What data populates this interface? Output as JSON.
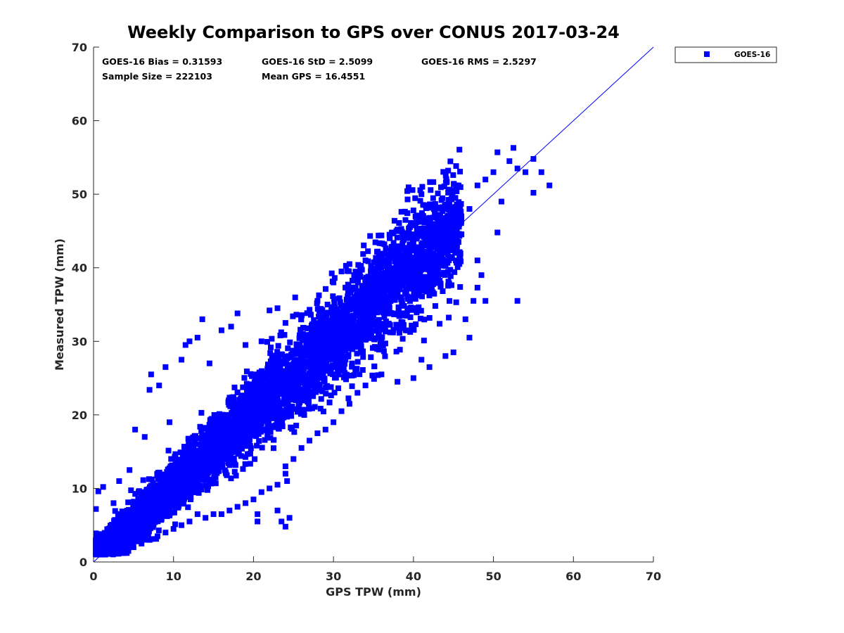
{
  "chart_data": {
    "type": "scatter",
    "title": "Weekly Comparison to GPS over CONUS 2017-03-24",
    "xlabel": "GPS TPW (mm)",
    "ylabel": "Measured TPW (mm)",
    "xlim": [
      0,
      70
    ],
    "ylim": [
      0,
      70
    ],
    "xticks": [
      0,
      10,
      20,
      30,
      40,
      50,
      60,
      70
    ],
    "yticks": [
      0,
      10,
      20,
      30,
      40,
      50,
      60,
      70
    ],
    "grid": false,
    "legend": {
      "position": "outside-top-right",
      "entries": [
        "GOES-16"
      ]
    },
    "series": [
      {
        "name": "GOES-16",
        "color": "#0000ff",
        "marker": "square",
        "description": "dense cloud of points clustered along the 1:1 line from about 0 to 55 mm",
        "points": [
          [
            0.5,
            2.0
          ],
          [
            1.0,
            1.5
          ],
          [
            1.5,
            3.0
          ],
          [
            2.0,
            2.5
          ],
          [
            3.0,
            3.5
          ],
          [
            4.0,
            4.2
          ],
          [
            5.0,
            5.5
          ],
          [
            6.0,
            6.8
          ],
          [
            7.0,
            7.5
          ],
          [
            8.0,
            8.6
          ],
          [
            9.0,
            9.4
          ],
          [
            10.0,
            10.5
          ],
          [
            11.0,
            11.6
          ],
          [
            12.0,
            12.8
          ],
          [
            13.0,
            13.2
          ],
          [
            14.0,
            14.9
          ],
          [
            15.0,
            15.5
          ],
          [
            16.0,
            16.7
          ],
          [
            17.0,
            17.2
          ],
          [
            18.0,
            18.9
          ],
          [
            19.0,
            19.6
          ],
          [
            20.0,
            20.5
          ],
          [
            21.0,
            21.8
          ],
          [
            22.0,
            22.4
          ],
          [
            23.0,
            23.6
          ],
          [
            24.0,
            24.8
          ],
          [
            25.0,
            25.3
          ],
          [
            26.0,
            26.9
          ],
          [
            27.0,
            27.4
          ],
          [
            28.0,
            28.7
          ],
          [
            29.0,
            29.5
          ],
          [
            30.0,
            30.6
          ],
          [
            31.0,
            31.2
          ],
          [
            32.0,
            32.8
          ],
          [
            33.0,
            33.5
          ],
          [
            34.0,
            34.7
          ],
          [
            35.0,
            35.3
          ],
          [
            36.0,
            36.8
          ],
          [
            37.0,
            37.4
          ],
          [
            38.0,
            38.9
          ],
          [
            39.0,
            39.6
          ],
          [
            40.0,
            40.5
          ],
          [
            41.0,
            41.8
          ],
          [
            42.0,
            42.3
          ],
          [
            43.0,
            43.7
          ],
          [
            44.0,
            44.6
          ],
          [
            45.0,
            45.2
          ],
          [
            46.0,
            46.4
          ],
          [
            0.3,
            7.2
          ],
          [
            0.6,
            9.6
          ],
          [
            1.2,
            10.2
          ],
          [
            2.5,
            8.0
          ],
          [
            3.2,
            11.0
          ],
          [
            4.5,
            12.5
          ],
          [
            5.2,
            18.0
          ],
          [
            6.4,
            17.0
          ],
          [
            7.0,
            23.4
          ],
          [
            7.2,
            25.5
          ],
          [
            8.2,
            24.0
          ],
          [
            9.0,
            26.5
          ],
          [
            9.5,
            19.0
          ],
          [
            11.0,
            27.5
          ],
          [
            11.5,
            29.5
          ],
          [
            12.0,
            30.0
          ],
          [
            13.0,
            30.5
          ],
          [
            13.6,
            33.0
          ],
          [
            14.5,
            27.0
          ],
          [
            16.0,
            31.5
          ],
          [
            17.2,
            32.0
          ],
          [
            18.0,
            33.8
          ],
          [
            19.0,
            29.5
          ],
          [
            21.0,
            30.0
          ],
          [
            22.0,
            34.2
          ],
          [
            23.0,
            34.5
          ],
          [
            24.0,
            32.5
          ],
          [
            26.0,
            33.5
          ],
          [
            28.0,
            35.5
          ],
          [
            30.0,
            38.0
          ],
          [
            31.0,
            39.5
          ],
          [
            32.0,
            40.5
          ],
          [
            34.0,
            41.0
          ],
          [
            36.0,
            44.4
          ],
          [
            37.0,
            44.5
          ],
          [
            38.0,
            45.2
          ],
          [
            39.0,
            46.5
          ],
          [
            40.0,
            47.8
          ],
          [
            41.0,
            50.0
          ],
          [
            42.0,
            48.5
          ],
          [
            43.5,
            49.2
          ],
          [
            44.0,
            48.0
          ],
          [
            45.0,
            47.5
          ],
          [
            46.0,
            47.0
          ],
          [
            47.0,
            48.0
          ],
          [
            48.0,
            51.2
          ],
          [
            49.0,
            52.0
          ],
          [
            50.0,
            53.0
          ],
          [
            50.5,
            55.7
          ],
          [
            52.0,
            54.5
          ],
          [
            52.5,
            56.3
          ],
          [
            53.0,
            53.5
          ],
          [
            54.0,
            53.0
          ],
          [
            55.0,
            54.8
          ],
          [
            55.0,
            50.2
          ],
          [
            56.0,
            53.0
          ],
          [
            57.0,
            51.2
          ],
          [
            51.0,
            49.0
          ],
          [
            50.5,
            44.8
          ],
          [
            48.0,
            41.0
          ],
          [
            48.5,
            39.0
          ],
          [
            48.0,
            37.3
          ],
          [
            47.5,
            35.5
          ],
          [
            49.0,
            35.5
          ],
          [
            53.0,
            35.5
          ],
          [
            46.5,
            33.0
          ],
          [
            47.0,
            30.5
          ],
          [
            45.0,
            28.5
          ],
          [
            44.0,
            28.0
          ],
          [
            42.0,
            26.5
          ],
          [
            41.0,
            27.5
          ],
          [
            40.0,
            25.0
          ],
          [
            38.0,
            24.5
          ],
          [
            36.0,
            25.5
          ],
          [
            34.0,
            24.0
          ],
          [
            33.0,
            23.0
          ],
          [
            32.0,
            21.5
          ],
          [
            31.0,
            20.5
          ],
          [
            30.0,
            19.0
          ],
          [
            29.0,
            18.0
          ],
          [
            28.0,
            17.5
          ],
          [
            27.0,
            16.5
          ],
          [
            26.0,
            15.5
          ],
          [
            25.0,
            14.0
          ],
          [
            24.0,
            13.0
          ],
          [
            24.0,
            12.0
          ],
          [
            23.0,
            10.5
          ],
          [
            22.0,
            10.0
          ],
          [
            21.0,
            9.5
          ],
          [
            20.0,
            8.5
          ],
          [
            19.0,
            8.0
          ],
          [
            18.0,
            7.5
          ],
          [
            17.0,
            7.0
          ],
          [
            16.0,
            6.5
          ],
          [
            15.0,
            6.5
          ],
          [
            14.0,
            6.0
          ],
          [
            13.0,
            6.5
          ],
          [
            12.0,
            5.5
          ],
          [
            11.0,
            5.0
          ],
          [
            10.0,
            4.5
          ],
          [
            9.0,
            4.0
          ],
          [
            8.0,
            3.5
          ],
          [
            7.0,
            3.0
          ],
          [
            6.0,
            2.5
          ],
          [
            5.0,
            2.0
          ],
          [
            4.0,
            1.5
          ],
          [
            3.0,
            1.5
          ],
          [
            2.0,
            1.2
          ],
          [
            1.0,
            1.0
          ],
          [
            20.5,
            6.5
          ],
          [
            20.5,
            5.5
          ],
          [
            23.0,
            7.0
          ],
          [
            23.5,
            5.5
          ],
          [
            24.0,
            4.8
          ],
          [
            24.5,
            6.0
          ],
          [
            24.2,
            11.0
          ]
        ]
      }
    ],
    "reference_line": {
      "from": [
        0,
        0
      ],
      "to": [
        70,
        70
      ],
      "color": "#0000ff"
    },
    "annotations": {
      "bias": "GOES-16 Bias = 0.31593",
      "std": "GOES-16 StD = 2.5099",
      "rms": "GOES-16 RMS = 2.5297",
      "sample_size": "Sample Size = 222103",
      "mean_gps": "Mean GPS = 16.4551"
    }
  }
}
